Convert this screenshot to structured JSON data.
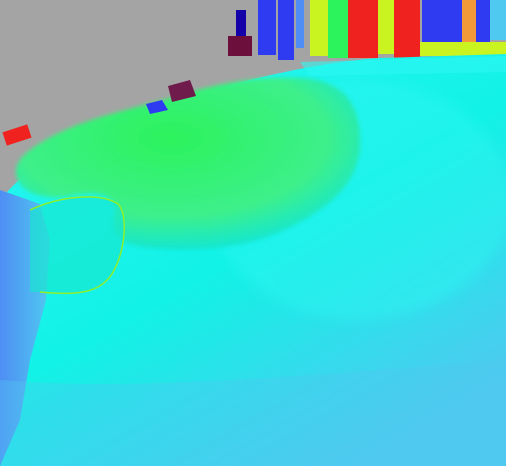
{
  "image": {
    "kind": "false-color visualization",
    "text": ""
  },
  "palette": {
    "background_gray": "#a4a4a4",
    "cyan": "#12f2e6",
    "light_cyan": "#2df6f3",
    "aqua": "#15e6d0",
    "green": "#2cf35c",
    "light_green": "#3df08b",
    "lime": "#8ef02a",
    "blue": "#4f8ef4",
    "sky_blue": "#4fc9f0",
    "deep_blue": "#2e3bf0",
    "navy": "#1400a8",
    "red": "#f0221f",
    "orange": "#f29a39",
    "yellow": "#c9f41f",
    "maroon": "#6c0f3d",
    "purple": "#6f1b4b"
  }
}
